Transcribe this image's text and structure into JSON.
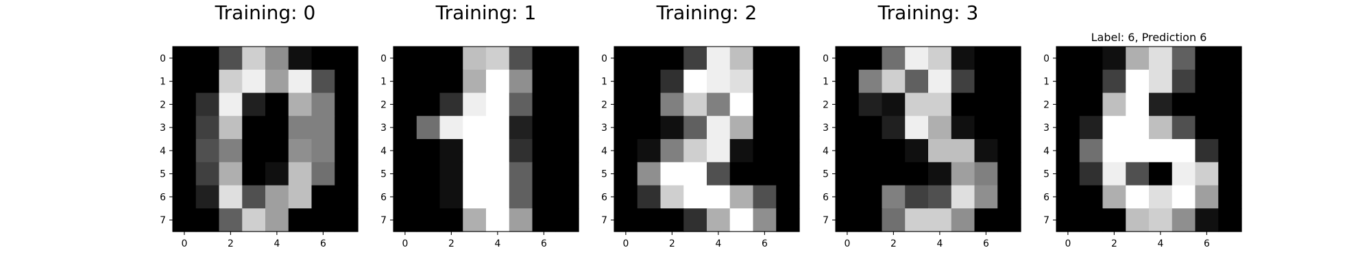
{
  "chart_data": [
    {
      "type": "heatmap",
      "title": "Training: 0",
      "colormap": "gray",
      "value_range": [
        0,
        16
      ],
      "x_ticks": [
        "0",
        "2",
        "4",
        "6"
      ],
      "y_ticks": [
        "0",
        "1",
        "2",
        "3",
        "4",
        "5",
        "6",
        "7"
      ],
      "values": [
        [
          0,
          0,
          5,
          13,
          9,
          1,
          0,
          0
        ],
        [
          0,
          0,
          13,
          15,
          10,
          15,
          5,
          0
        ],
        [
          0,
          3,
          15,
          2,
          0,
          11,
          8,
          0
        ],
        [
          0,
          4,
          12,
          0,
          0,
          8,
          8,
          0
        ],
        [
          0,
          5,
          8,
          0,
          0,
          9,
          8,
          0
        ],
        [
          0,
          4,
          11,
          0,
          1,
          12,
          7,
          0
        ],
        [
          0,
          2,
          14,
          5,
          10,
          12,
          0,
          0
        ],
        [
          0,
          0,
          6,
          13,
          10,
          0,
          0,
          0
        ]
      ]
    },
    {
      "type": "heatmap",
      "title": "Training: 1",
      "colormap": "gray",
      "value_range": [
        0,
        16
      ],
      "x_ticks": [
        "0",
        "2",
        "4",
        "6"
      ],
      "y_ticks": [
        "0",
        "1",
        "2",
        "3",
        "4",
        "5",
        "6",
        "7"
      ],
      "values": [
        [
          0,
          0,
          0,
          12,
          13,
          5,
          0,
          0
        ],
        [
          0,
          0,
          0,
          11,
          16,
          9,
          0,
          0
        ],
        [
          0,
          0,
          3,
          15,
          16,
          6,
          0,
          0
        ],
        [
          0,
          7,
          15,
          16,
          16,
          2,
          0,
          0
        ],
        [
          0,
          0,
          1,
          16,
          16,
          3,
          0,
          0
        ],
        [
          0,
          0,
          1,
          16,
          16,
          6,
          0,
          0
        ],
        [
          0,
          0,
          1,
          16,
          16,
          6,
          0,
          0
        ],
        [
          0,
          0,
          0,
          11,
          16,
          10,
          0,
          0
        ]
      ]
    },
    {
      "type": "heatmap",
      "title": "Training: 2",
      "colormap": "gray",
      "value_range": [
        0,
        16
      ],
      "x_ticks": [
        "0",
        "2",
        "4",
        "6"
      ],
      "y_ticks": [
        "0",
        "1",
        "2",
        "3",
        "4",
        "5",
        "6",
        "7"
      ],
      "values": [
        [
          0,
          0,
          0,
          4,
          15,
          12,
          0,
          0
        ],
        [
          0,
          0,
          3,
          16,
          15,
          14,
          0,
          0
        ],
        [
          0,
          0,
          8,
          13,
          8,
          16,
          0,
          0
        ],
        [
          0,
          0,
          1,
          6,
          15,
          11,
          0,
          0
        ],
        [
          0,
          1,
          8,
          13,
          15,
          1,
          0,
          0
        ],
        [
          0,
          9,
          16,
          16,
          5,
          0,
          0,
          0
        ],
        [
          0,
          3,
          13,
          16,
          16,
          11,
          5,
          0
        ],
        [
          0,
          0,
          0,
          3,
          11,
          16,
          9,
          0
        ]
      ]
    },
    {
      "type": "heatmap",
      "title": "Training: 3",
      "colormap": "gray",
      "value_range": [
        0,
        16
      ],
      "x_ticks": [
        "0",
        "2",
        "4",
        "6"
      ],
      "y_ticks": [
        "0",
        "1",
        "2",
        "3",
        "4",
        "5",
        "6",
        "7"
      ],
      "values": [
        [
          0,
          0,
          7,
          15,
          13,
          1,
          0,
          0
        ],
        [
          0,
          8,
          13,
          6,
          15,
          4,
          0,
          0
        ],
        [
          0,
          2,
          1,
          13,
          13,
          0,
          0,
          0
        ],
        [
          0,
          0,
          2,
          15,
          11,
          1,
          0,
          0
        ],
        [
          0,
          0,
          0,
          1,
          12,
          12,
          1,
          0
        ],
        [
          0,
          0,
          0,
          0,
          1,
          10,
          8,
          0
        ],
        [
          0,
          0,
          8,
          4,
          5,
          14,
          9,
          0
        ],
        [
          0,
          0,
          7,
          13,
          13,
          9,
          0,
          0
        ]
      ]
    },
    {
      "type": "heatmap",
      "title": "Label: 6, Prediction 6",
      "colormap": "gray",
      "value_range": [
        0,
        16
      ],
      "x_ticks": [
        "0",
        "2",
        "4",
        "6"
      ],
      "y_ticks": [
        "0",
        "1",
        "2",
        "3",
        "4",
        "5",
        "6",
        "7"
      ],
      "values": [
        [
          0,
          0,
          1,
          11,
          14,
          6,
          0,
          0
        ],
        [
          0,
          0,
          4,
          16,
          14,
          4,
          0,
          0
        ],
        [
          0,
          0,
          12,
          16,
          2,
          0,
          0,
          0
        ],
        [
          0,
          2,
          16,
          16,
          12,
          5,
          0,
          0
        ],
        [
          0,
          7,
          16,
          16,
          16,
          16,
          3,
          0
        ],
        [
          0,
          3,
          15,
          5,
          0,
          15,
          13,
          0
        ],
        [
          0,
          0,
          11,
          16,
          14,
          16,
          10,
          0
        ],
        [
          0,
          0,
          0,
          12,
          13,
          9,
          1,
          0
        ]
      ]
    }
  ]
}
